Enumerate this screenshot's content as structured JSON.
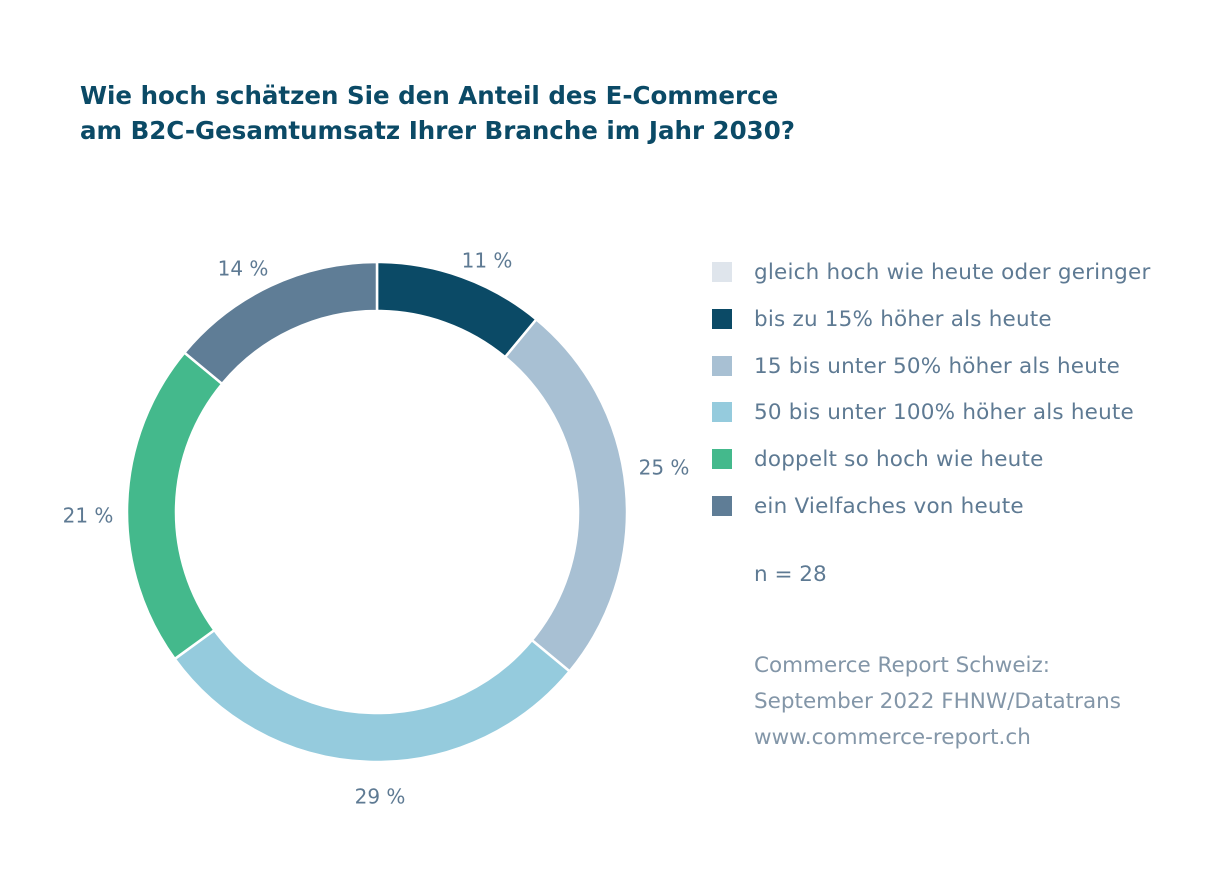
{
  "title_lines": [
    "Wie hoch schätzen Sie den Anteil des E-Commerce",
    "am B2C-Gesamtumsatz Ihrer Branche im Jahr 2030?"
  ],
  "chart_data": {
    "type": "pie",
    "variant": "donut",
    "title": "Wie hoch schätzen Sie den Anteil des E-Commerce am B2C-Gesamtumsatz Ihrer Branche im Jahr 2030?",
    "categories": [
      "gleich hoch wie heute oder geringer",
      "bis zu 15% höher als heute",
      "15 bis unter 50% höher als heute",
      "50 bis unter 100% höher als heute",
      "doppelt so hoch wie heute",
      "ein Vielfaches von heute"
    ],
    "values": [
      0,
      11,
      25,
      29,
      21,
      14
    ],
    "value_labels": [
      "",
      "11 %",
      "25 %",
      "29 %",
      "21 %",
      "14 %"
    ],
    "colors": [
      "#dfe5ec",
      "#0b4a66",
      "#a8c0d3",
      "#95cbdd",
      "#44b98c",
      "#5f7d96"
    ],
    "unit": "%",
    "legend_position": "right",
    "start_angle": "12 o'clock, clockwise"
  },
  "legend": [
    {
      "label": "gleich hoch wie heute oder geringer",
      "color": "#dfe5ec"
    },
    {
      "label": "bis zu 15% höher als heute",
      "color": "#0b4a66"
    },
    {
      "label": "15 bis unter 50% höher als heute",
      "color": "#a8c0d3"
    },
    {
      "label": "50 bis unter 100% höher als heute",
      "color": "#95cbdd"
    },
    {
      "label": "doppelt so hoch wie heute",
      "color": "#44b98c"
    },
    {
      "label": "ein Vielfaches von heute",
      "color": "#5f7d96"
    }
  ],
  "sample_size": "n = 28",
  "source_lines": [
    "Commerce Report Schweiz:",
    "September 2022 FHNW/Datatrans",
    "www.commerce-report.ch"
  ]
}
